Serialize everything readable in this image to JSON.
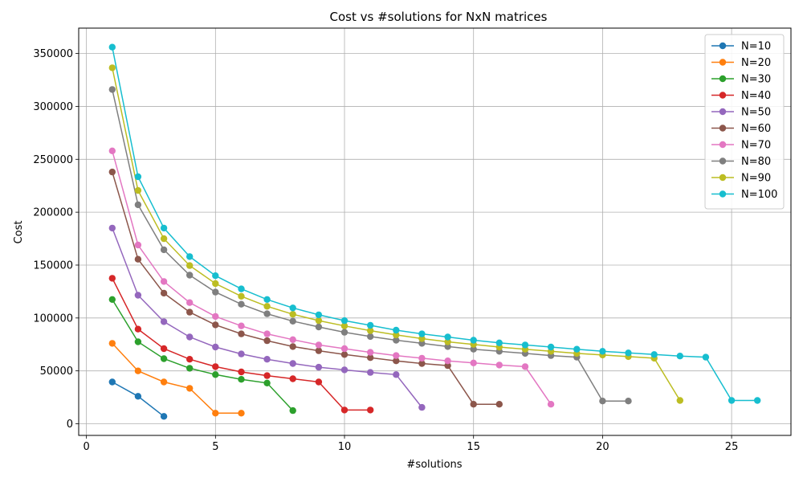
{
  "chart_data": {
    "type": "line",
    "title": "Cost vs #solutions for NxN matrices",
    "xlabel": "#solutions",
    "ylabel": "Cost",
    "xlim": [
      -0.3,
      27.3
    ],
    "ylim": [
      -11000,
      374000
    ],
    "xticks": [
      0,
      5,
      10,
      15,
      20,
      25
    ],
    "yticks": [
      0,
      50000,
      100000,
      150000,
      200000,
      250000,
      300000,
      350000
    ],
    "grid": true,
    "legend_position": "top-right",
    "series": [
      {
        "name": "N=10",
        "color": "#1f77b4",
        "x": [
          1,
          2,
          3
        ],
        "y": [
          39500,
          26000,
          7000
        ]
      },
      {
        "name": "N=20",
        "color": "#ff7f0e",
        "x": [
          1,
          2,
          3,
          4,
          5,
          6
        ],
        "y": [
          76000,
          50000,
          39500,
          33500,
          10000,
          10000
        ]
      },
      {
        "name": "N=30",
        "color": "#2ca02c",
        "x": [
          1,
          2,
          3,
          4,
          5,
          6,
          7,
          8
        ],
        "y": [
          117500,
          77500,
          61500,
          52500,
          46500,
          42000,
          38500,
          12500
        ]
      },
      {
        "name": "N=40",
        "color": "#d62728",
        "x": [
          1,
          2,
          3,
          4,
          5,
          6,
          7,
          8,
          9,
          10,
          11
        ],
        "y": [
          137500,
          89500,
          71000,
          61000,
          54000,
          49000,
          45500,
          42500,
          39500,
          13000,
          13000
        ]
      },
      {
        "name": "N=50",
        "color": "#9467bd",
        "x": [
          1,
          2,
          3,
          4,
          5,
          6,
          7,
          8,
          9,
          10,
          11,
          12,
          13
        ],
        "y": [
          185000,
          121500,
          96500,
          82000,
          72500,
          66000,
          61000,
          57000,
          53500,
          51000,
          48500,
          46500,
          15500
        ]
      },
      {
        "name": "N=60",
        "color": "#8c564b",
        "x": [
          1,
          2,
          3,
          4,
          5,
          6,
          7,
          8,
          9,
          10,
          11,
          12,
          13,
          14,
          15,
          16
        ],
        "y": [
          238000,
          155500,
          123500,
          105500,
          93500,
          85000,
          78500,
          73000,
          69000,
          65500,
          62500,
          59500,
          57000,
          55000,
          18500,
          18500
        ]
      },
      {
        "name": "N=70",
        "color": "#e377c2",
        "x": [
          1,
          2,
          3,
          4,
          5,
          6,
          7,
          8,
          9,
          10,
          11,
          12,
          13,
          14,
          15,
          16,
          17,
          18
        ],
        "y": [
          258000,
          169000,
          134500,
          114500,
          101500,
          92500,
          85000,
          79500,
          74500,
          71000,
          67500,
          64500,
          62000,
          59500,
          57500,
          55500,
          54000,
          18500
        ]
      },
      {
        "name": "N=80",
        "color": "#7f7f7f",
        "x": [
          1,
          2,
          3,
          4,
          5,
          6,
          7,
          8,
          9,
          10,
          11,
          12,
          13,
          14,
          15,
          16,
          17,
          18,
          19,
          20,
          21
        ],
        "y": [
          316000,
          207000,
          164500,
          140500,
          124500,
          113000,
          104000,
          97000,
          91500,
          86500,
          82500,
          79000,
          76000,
          73000,
          70500,
          68500,
          66500,
          64500,
          63000,
          21500,
          21500
        ]
      },
      {
        "name": "N=90",
        "color": "#bcbd22",
        "x": [
          1,
          2,
          3,
          4,
          5,
          6,
          7,
          8,
          9,
          10,
          11,
          12,
          13,
          14,
          15,
          16,
          17,
          18,
          19,
          20,
          21,
          22,
          23
        ],
        "y": [
          336500,
          220500,
          175000,
          149500,
          132500,
          120500,
          111000,
          103500,
          97500,
          92500,
          88000,
          84000,
          80500,
          77500,
          75000,
          72500,
          70500,
          68500,
          66500,
          65000,
          63500,
          62000,
          22000
        ]
      },
      {
        "name": "N=100",
        "color": "#17becf",
        "x": [
          1,
          2,
          3,
          4,
          5,
          6,
          7,
          8,
          9,
          10,
          11,
          12,
          13,
          14,
          15,
          16,
          17,
          18,
          19,
          20,
          21,
          22,
          23,
          24,
          25,
          26
        ],
        "y": [
          356000,
          233500,
          185000,
          158000,
          140000,
          127500,
          117500,
          109500,
          103000,
          97500,
          93000,
          88500,
          85000,
          82000,
          79000,
          76500,
          74500,
          72500,
          70500,
          68500,
          67000,
          65500,
          64000,
          63000,
          22000,
          22000
        ]
      }
    ]
  }
}
